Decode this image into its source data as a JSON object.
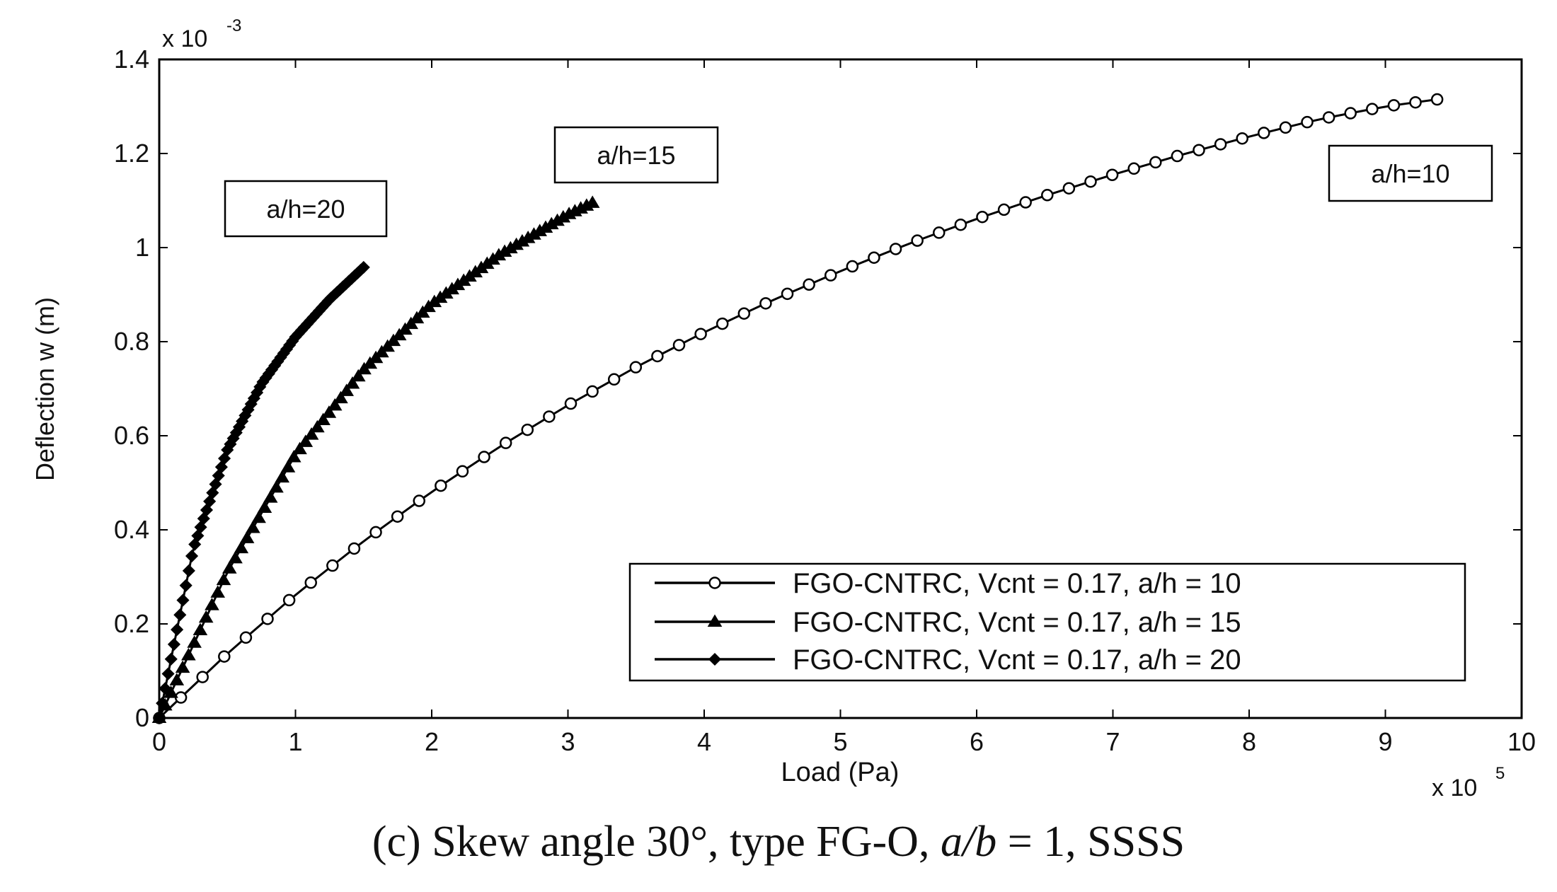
{
  "chart_data": {
    "type": "line",
    "xlabel": "Load (Pa)",
    "ylabel": "Deflection w (m)",
    "x_multiplier": "x 10",
    "x_multiplier_exp": "5",
    "y_multiplier": "x 10",
    "y_multiplier_exp": "-3",
    "xlim": [
      0,
      10
    ],
    "ylim": [
      0,
      1.4
    ],
    "xticks": [
      "0",
      "1",
      "2",
      "3",
      "4",
      "5",
      "6",
      "7",
      "8",
      "9",
      "10"
    ],
    "yticks": [
      "0",
      "0.2",
      "0.4",
      "0.6",
      "0.8",
      "1",
      "1.2",
      "1.4"
    ],
    "grid": false,
    "legend_position": "bottom-right",
    "series": [
      {
        "name": "FGO-CNTRC, Vcnt = 0.17, a/h = 10",
        "marker": "circle",
        "annotation": "a/h=10",
        "x_max": 9.38,
        "y_max": 1.315,
        "points": 60,
        "x": [
          0,
          0.5,
          1,
          1.5,
          2,
          2.5,
          3,
          3.5,
          4,
          4.5,
          5,
          5.5,
          6,
          6.5,
          7,
          7.5,
          8,
          8.5,
          9,
          9.38
        ],
        "y": [
          0,
          0.137,
          0.262,
          0.376,
          0.481,
          0.577,
          0.665,
          0.746,
          0.82,
          0.888,
          0.95,
          1.008,
          1.061,
          1.11,
          1.155,
          1.197,
          1.236,
          1.272,
          1.3,
          1.315
        ]
      },
      {
        "name": "FGO-CNTRC, Vcnt = 0.17, a/h = 15",
        "marker": "triangle",
        "annotation": "a/h=15",
        "x_max": 3.18,
        "y_max": 1.095,
        "points": 75,
        "x": [
          0,
          0.5,
          1,
          1.5,
          2,
          2.5,
          3,
          3.18
        ],
        "y": [
          0,
          0.31,
          0.56,
          0.74,
          0.88,
          0.985,
          1.07,
          1.095
        ]
      },
      {
        "name": "FGO-CNTRC, Vcnt = 0.17, a/h = 20",
        "marker": "diamond",
        "annotation": "a/h=20",
        "x_max": 1.5,
        "y_max": 0.958,
        "points": 70,
        "x": [
          0,
          0.25,
          0.5,
          0.75,
          1,
          1.25,
          1.5
        ],
        "y": [
          0,
          0.36,
          0.57,
          0.71,
          0.81,
          0.89,
          0.958
        ]
      }
    ]
  },
  "caption": {
    "prefix": "(c) Skew angle 30°, type FG-O, ",
    "math": "a/b",
    "suffix": " = 1, SSSS"
  }
}
